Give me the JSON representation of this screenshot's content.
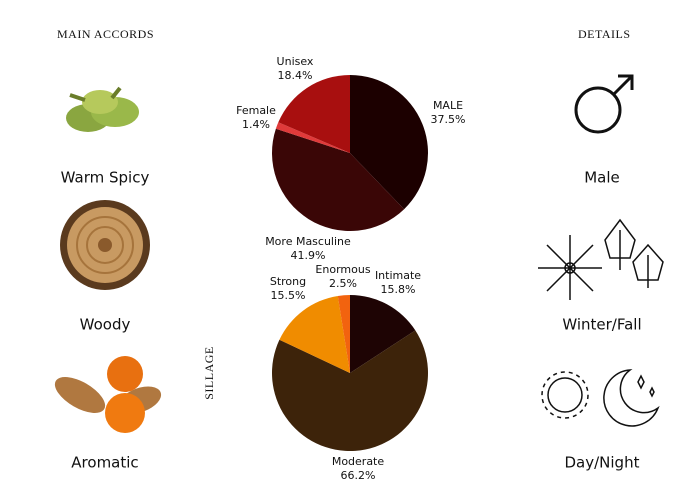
{
  "headers": {
    "left": "MAIN ACCORDS",
    "right": "DETAILS"
  },
  "accords": [
    "Warm Spicy",
    "Woody",
    "Aromatic"
  ],
  "details": [
    "Male",
    "Winter/Fall",
    "Day/Night"
  ],
  "chart_data": [
    {
      "type": "pie",
      "categories": [
        "MALE",
        "More Masculine",
        "Female",
        "Unisex"
      ],
      "values": [
        37.5,
        41.9,
        1.4,
        18.4
      ],
      "value_labels": [
        "37.5%",
        "41.9%",
        "1.4%",
        "18.4%"
      ],
      "colors": [
        "#1c0000",
        "#3a0606",
        "#e03a3a",
        "#a80f0f"
      ]
    },
    {
      "type": "pie",
      "title": "SILLAGE",
      "categories": [
        "Intimate",
        "Moderate",
        "Strong",
        "Enormous"
      ],
      "values": [
        15.8,
        66.2,
        15.5,
        2.5
      ],
      "value_labels": [
        "15.8%",
        "66.2%",
        "15.5%",
        "2.5%"
      ],
      "colors": [
        "#1e0404",
        "#3d230a",
        "#f08c00",
        "#f2630f"
      ]
    }
  ]
}
